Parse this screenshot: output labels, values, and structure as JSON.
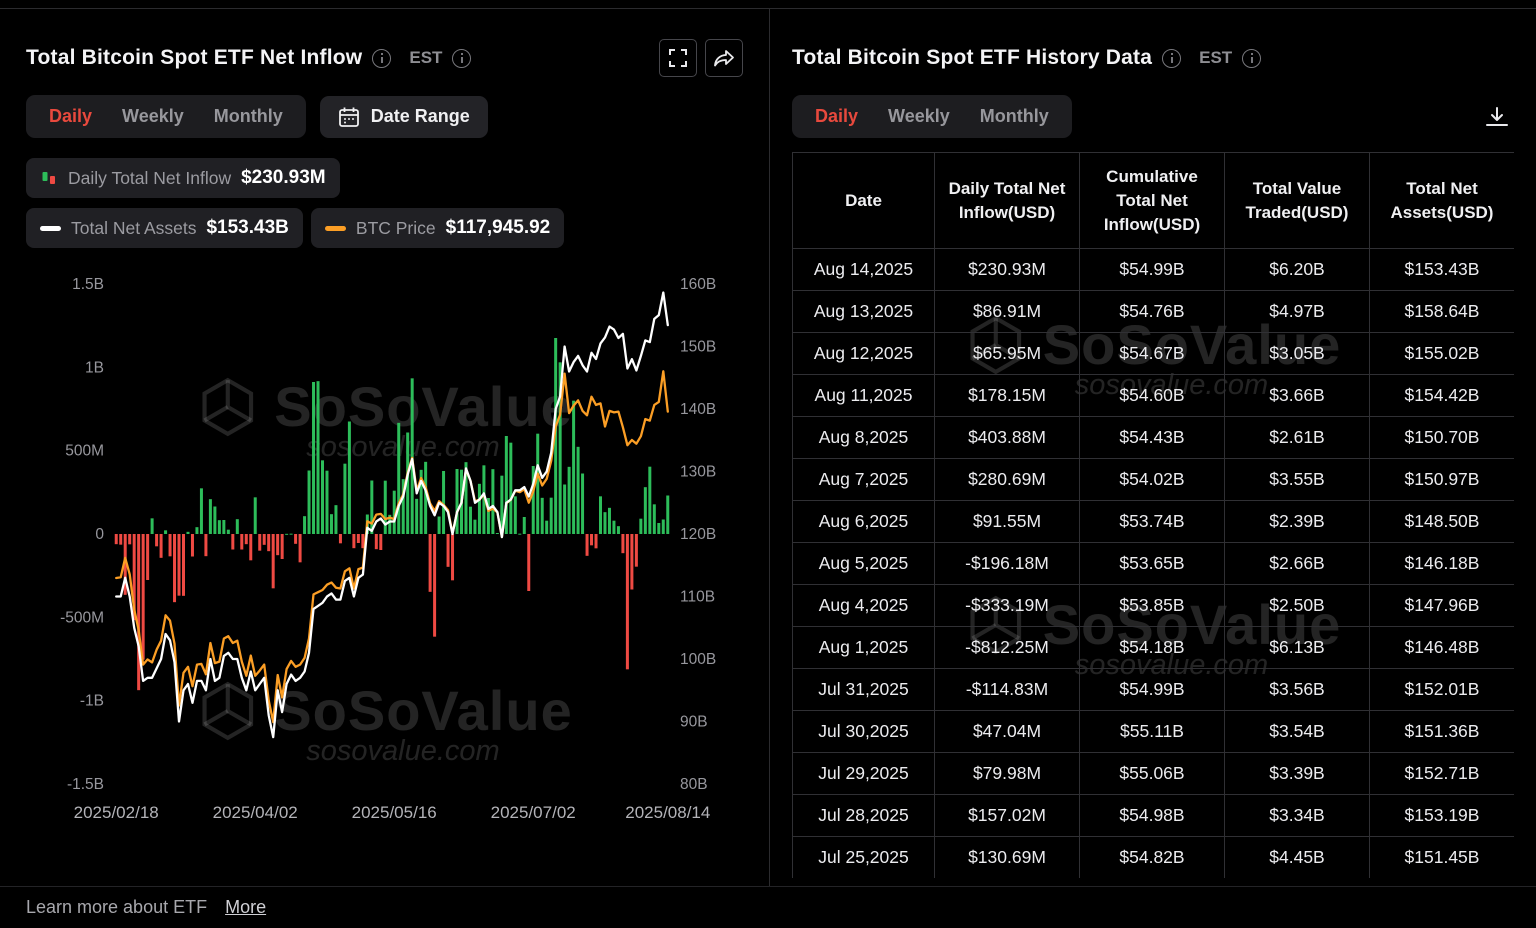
{
  "left_panel": {
    "title": "Total Bitcoin Spot ETF Net Inflow",
    "est_label": "EST",
    "tabs": [
      "Daily",
      "Weekly",
      "Monthly"
    ],
    "active_tab": "Daily",
    "date_range_label": "Date Range",
    "legend": {
      "inflow_label": "Daily Total Net Inflow",
      "inflow_value": "$230.93M",
      "assets_label": "Total Net Assets",
      "assets_value": "$153.43B",
      "btc_label": "BTC Price",
      "btc_value": "$117,945.92"
    }
  },
  "chart_data": {
    "type": "bar",
    "subtype": "combo-bar-line",
    "title": "Total Bitcoin Spot ETF Net Inflow",
    "axes": {
      "left": {
        "min": -1500,
        "max": 1500,
        "unit": "USD millions",
        "ticks": [
          {
            "value": 1500,
            "label": "1.5B"
          },
          {
            "value": 1000,
            "label": "1B"
          },
          {
            "value": 500,
            "label": "500M"
          },
          {
            "value": 0,
            "label": "0"
          },
          {
            "value": -500,
            "label": "-500M"
          },
          {
            "value": -1000,
            "label": "-1B"
          },
          {
            "value": -1500,
            "label": "-1.5B"
          }
        ]
      },
      "right": {
        "min": 80,
        "max": 160,
        "unit": "USD billions",
        "ticks": [
          {
            "value": 160,
            "label": "160B"
          },
          {
            "value": 150,
            "label": "150B"
          },
          {
            "value": 140,
            "label": "140B"
          },
          {
            "value": 130,
            "label": "130B"
          },
          {
            "value": 120,
            "label": "120B"
          },
          {
            "value": 110,
            "label": "110B"
          },
          {
            "value": 100,
            "label": "100B"
          },
          {
            "value": 90,
            "label": "90B"
          },
          {
            "value": 80,
            "label": "80B"
          }
        ]
      },
      "btc": {
        "min": 68,
        "max": 135,
        "unit": "USD thousands",
        "hidden": true
      },
      "x": {
        "ticks": [
          {
            "index": 0,
            "label": "2025/02/18"
          },
          {
            "index": 31,
            "label": "2025/04/02"
          },
          {
            "index": 62,
            "label": "2025/05/16"
          },
          {
            "index": 93,
            "label": "2025/07/02"
          },
          {
            "index": 123,
            "label": "2025/08/14"
          }
        ]
      }
    },
    "series": {
      "bars": {
        "name": "Daily Total Net Inflow (USD M)",
        "color_positive": "#2dbd5a",
        "color_negative": "#ef4a43",
        "values": [
          -61,
          -64,
          -365,
          -62,
          -517,
          -937,
          -754,
          -276,
          94,
          -74,
          -143,
          22,
          -134,
          -409,
          -370,
          -371,
          13,
          -135,
          41,
          274,
          -133,
          209,
          165,
          83,
          84,
          26,
          -93,
          89,
          -93,
          -61,
          -158,
          220,
          -100,
          -65,
          -103,
          -326,
          -127,
          -150,
          1,
          2,
          -59,
          -170,
          107,
          381,
          912,
          917,
          442,
          380,
          119,
          173,
          -56,
          422,
          675,
          -85,
          -54,
          -85,
          117,
          321,
          -91,
          -96,
          320,
          115,
          260,
          667,
          329,
          609,
          934,
          211,
          385,
          433,
          -347,
          -616,
          105,
          378,
          -197,
          -278,
          390,
          386,
          431,
          164,
          86,
          301,
          412,
          216,
          389,
          6,
          350,
          588,
          548,
          226,
          2,
          102,
          -342,
          408,
          602,
          217,
          80,
          218,
          1176,
          1030,
          297,
          403,
          800,
          523,
          363,
          -131,
          -68,
          -86,
          226,
          131,
          157,
          80,
          47,
          -115,
          -812,
          -333,
          -196,
          92,
          281,
          404,
          178,
          66,
          87,
          231
        ]
      },
      "net_assets": {
        "name": "Total Net Assets (USD B)",
        "color": "#ffffff",
        "values": [
          110,
          110,
          113,
          110,
          105,
          102,
          96.5,
          97,
          97,
          98.5,
          100,
          104,
          103,
          99.5,
          90,
          95,
          96,
          93,
          96.5,
          96.5,
          95,
          100,
          96.5,
          97,
          100.5,
          101,
          100,
          100,
          97,
          95,
          98,
          95,
          96,
          97,
          91,
          87.5,
          95,
          91.5,
          96,
          97.5,
          96.5,
          97,
          98,
          101,
          108,
          108.5,
          109,
          110,
          110.5,
          109.5,
          109.5,
          112.5,
          113,
          110,
          113,
          113.5,
          121,
          120.5,
          122,
          122.5,
          121.5,
          122,
          122,
          124.5,
          126,
          129.5,
          132,
          126.5,
          128.5,
          127,
          124.5,
          123,
          125,
          124.5,
          123.5,
          120,
          123.5,
          125,
          130.5,
          128.5,
          125,
          125.5,
          126.5,
          124,
          124.5,
          123.5,
          119.5,
          125,
          125.5,
          127,
          127,
          127.5,
          126,
          128,
          131,
          129,
          130,
          133,
          140,
          142,
          150,
          146,
          147.5,
          148.5,
          147,
          146,
          149,
          148,
          150.5,
          151.45,
          153.19,
          152.71,
          151.36,
          152.01,
          146.48,
          147.96,
          146.18,
          148.5,
          150.97,
          150.7,
          154.42,
          155.02,
          158.64,
          153.43
        ]
      },
      "btc_price": {
        "name": "BTC Price (USD K)",
        "color": "#fb9e25",
        "values": [
          95.6,
          95.7,
          98.3,
          96.1,
          91.4,
          88.6,
          84,
          84.7,
          84.3,
          86,
          87.2,
          90.6,
          89.9,
          86.8,
          78.5,
          82.9,
          83.7,
          81.1,
          84,
          84.1,
          82.7,
          86.9,
          84.2,
          84.4,
          87.5,
          87.8,
          86.9,
          87.2,
          84.4,
          82.5,
          85.2,
          82.5,
          83.2,
          84,
          79.2,
          76.3,
          82.6,
          79.6,
          83.4,
          84.5,
          83.7,
          84,
          84.9,
          87.5,
          93.4,
          93.7,
          94,
          94.7,
          95,
          94.3,
          94.2,
          96.5,
          96.9,
          94.2,
          96.8,
          97,
          103.2,
          102.9,
          104.1,
          104.2,
          103.5,
          103.7,
          103.5,
          105.6,
          106.8,
          109.7,
          111.7,
          107.3,
          109,
          107.8,
          105.6,
          104.6,
          105.9,
          105.4,
          104.7,
          101.6,
          104.4,
          105.7,
          110.2,
          108.6,
          105.9,
          106.1,
          106.8,
          104.6,
          104.9,
          104.4,
          101.1,
          105.6,
          106.1,
          107.3,
          107.1,
          107.5,
          105.7,
          107.2,
          109.6,
          108,
          108.9,
          111.3,
          115.9,
          117.5,
          123,
          117.7,
          118.7,
          119.4,
          118,
          117.4,
          119.9,
          118.8,
          119,
          115.9,
          118,
          117.8,
          117.9,
          115.8,
          113.4,
          114.1,
          113.6,
          114.6,
          116.9,
          116.7,
          118.8,
          119.2,
          123.3,
          117.9
        ]
      }
    },
    "legend_position": "top-left",
    "grid": false
  },
  "right_panel": {
    "title": "Total Bitcoin Spot ETF History Data",
    "est_label": "EST",
    "tabs": [
      "Daily",
      "Weekly",
      "Monthly"
    ],
    "active_tab": "Daily",
    "table": {
      "headers": [
        "Date",
        "Daily Total Net Inflow(USD)",
        "Cumulative Total Net Inflow(USD)",
        "Total Value Traded(USD)",
        "Total Net Assets(USD)"
      ],
      "rows": [
        {
          "date": "Aug 14,2025",
          "inflow": "$230.93M",
          "cumulative": "$54.99B",
          "traded": "$6.20B",
          "assets": "$153.43B"
        },
        {
          "date": "Aug 13,2025",
          "inflow": "$86.91M",
          "cumulative": "$54.76B",
          "traded": "$4.97B",
          "assets": "$158.64B"
        },
        {
          "date": "Aug 12,2025",
          "inflow": "$65.95M",
          "cumulative": "$54.67B",
          "traded": "$3.05B",
          "assets": "$155.02B"
        },
        {
          "date": "Aug 11,2025",
          "inflow": "$178.15M",
          "cumulative": "$54.60B",
          "traded": "$3.66B",
          "assets": "$154.42B"
        },
        {
          "date": "Aug 8,2025",
          "inflow": "$403.88M",
          "cumulative": "$54.43B",
          "traded": "$2.61B",
          "assets": "$150.70B"
        },
        {
          "date": "Aug 7,2025",
          "inflow": "$280.69M",
          "cumulative": "$54.02B",
          "traded": "$3.55B",
          "assets": "$150.97B"
        },
        {
          "date": "Aug 6,2025",
          "inflow": "$91.55M",
          "cumulative": "$53.74B",
          "traded": "$2.39B",
          "assets": "$148.50B"
        },
        {
          "date": "Aug 5,2025",
          "inflow": "-$196.18M",
          "cumulative": "$53.65B",
          "traded": "$2.66B",
          "assets": "$146.18B"
        },
        {
          "date": "Aug 4,2025",
          "inflow": "-$333.19M",
          "cumulative": "$53.85B",
          "traded": "$2.50B",
          "assets": "$147.96B"
        },
        {
          "date": "Aug 1,2025",
          "inflow": "-$812.25M",
          "cumulative": "$54.18B",
          "traded": "$6.13B",
          "assets": "$146.48B"
        },
        {
          "date": "Jul 31,2025",
          "inflow": "-$114.83M",
          "cumulative": "$54.99B",
          "traded": "$3.56B",
          "assets": "$152.01B"
        },
        {
          "date": "Jul 30,2025",
          "inflow": "$47.04M",
          "cumulative": "$55.11B",
          "traded": "$3.54B",
          "assets": "$151.36B"
        },
        {
          "date": "Jul 29,2025",
          "inflow": "$79.98M",
          "cumulative": "$55.06B",
          "traded": "$3.39B",
          "assets": "$152.71B"
        },
        {
          "date": "Jul 28,2025",
          "inflow": "$157.02M",
          "cumulative": "$54.98B",
          "traded": "$3.34B",
          "assets": "$153.19B"
        },
        {
          "date": "Jul 25,2025",
          "inflow": "$130.69M",
          "cumulative": "$54.82B",
          "traded": "$4.45B",
          "assets": "$151.45B"
        }
      ]
    }
  },
  "footer": {
    "text": "Learn more about ETF",
    "link": "More"
  },
  "watermark": {
    "brand": "SoSoValue",
    "domain": "sosovalue.com"
  },
  "colors": {
    "accent_red": "#e8493d",
    "positive_green": "#2fbd5f",
    "negative_red": "#f25050",
    "btc_orange": "#fb9e25",
    "assets_white": "#ffffff",
    "background": "#000000"
  }
}
